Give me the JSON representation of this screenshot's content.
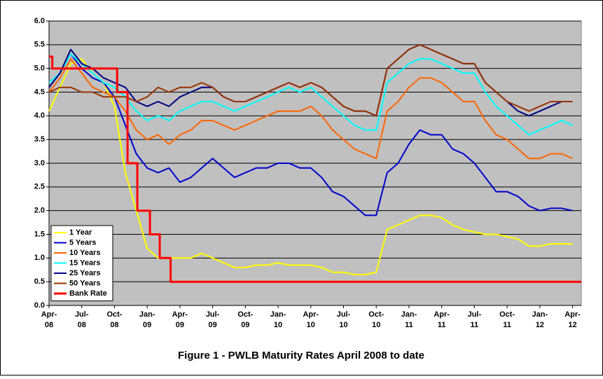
{
  "chart_data": {
    "type": "line",
    "title": "Figure 1 - PWLB Maturity Rates April 2008 to date",
    "x": [
      0,
      1,
      2,
      3,
      4,
      5,
      6,
      7,
      8,
      9,
      10,
      11,
      12,
      13,
      14,
      15,
      16,
      17,
      18,
      19,
      20,
      21,
      22,
      23,
      24,
      25,
      26,
      27,
      28,
      29,
      30,
      31,
      32,
      33,
      34,
      35,
      36,
      37,
      38,
      39,
      40,
      41,
      42,
      43,
      44,
      45,
      46,
      47,
      48
    ],
    "xlim": [
      0,
      48.8
    ],
    "xticks": [
      {
        "value": 0,
        "label": "Apr-08"
      },
      {
        "value": 3,
        "label": "Jul-08"
      },
      {
        "value": 6,
        "label": "Oct-08"
      },
      {
        "value": 9,
        "label": "Jan-09"
      },
      {
        "value": 12,
        "label": "Apr-09"
      },
      {
        "value": 15,
        "label": "Jul-09"
      },
      {
        "value": 18,
        "label": "Oct-09"
      },
      {
        "value": 21,
        "label": "Jan-10"
      },
      {
        "value": 24,
        "label": "Apr-10"
      },
      {
        "value": 27,
        "label": "Jul-10"
      },
      {
        "value": 30,
        "label": "Oct-10"
      },
      {
        "value": 33,
        "label": "Jan-11"
      },
      {
        "value": 36,
        "label": "Apr-11"
      },
      {
        "value": 39,
        "label": "Jul-11"
      },
      {
        "value": 42,
        "label": "Oct-11"
      },
      {
        "value": 45,
        "label": "Jan-12"
      },
      {
        "value": 48,
        "label": "Apr-12"
      }
    ],
    "ylim": [
      0,
      6
    ],
    "yticks": [
      {
        "value": 0,
        "label": "0.0"
      },
      {
        "value": 0.5,
        "label": "0.5"
      },
      {
        "value": 1,
        "label": "1.0"
      },
      {
        "value": 1.5,
        "label": "1.5"
      },
      {
        "value": 2,
        "label": "2.0"
      },
      {
        "value": 2.5,
        "label": "2.5"
      },
      {
        "value": 3,
        "label": "3.0"
      },
      {
        "value": 3.5,
        "label": "3.5"
      },
      {
        "value": 4,
        "label": "4.0"
      },
      {
        "value": 4.5,
        "label": "4.5"
      },
      {
        "value": 5,
        "label": "5.0"
      },
      {
        "value": 5.5,
        "label": "5.5"
      },
      {
        "value": 6,
        "label": "6.0"
      }
    ],
    "grid": true,
    "legend": "lower-left",
    "series": [
      {
        "name": "1 Year",
        "color": "#ffff00",
        "values": [
          4.1,
          4.6,
          5.1,
          5.2,
          4.9,
          4.7,
          4.2,
          2.8,
          2.0,
          1.2,
          1.0,
          1.0,
          1.0,
          1.0,
          1.1,
          1.0,
          0.9,
          0.8,
          0.8,
          0.85,
          0.85,
          0.9,
          0.85,
          0.85,
          0.85,
          0.8,
          0.7,
          0.7,
          0.65,
          0.65,
          0.7,
          1.6,
          1.7,
          1.8,
          1.9,
          1.9,
          1.85,
          1.7,
          1.6,
          1.55,
          1.5,
          1.5,
          1.45,
          1.4,
          1.25,
          1.25,
          1.3,
          1.3,
          1.3
        ]
      },
      {
        "name": "5 Years",
        "color": "#0000cc",
        "values": [
          4.6,
          4.9,
          5.3,
          5.0,
          4.8,
          4.7,
          4.4,
          3.8,
          3.2,
          2.9,
          2.8,
          2.9,
          2.6,
          2.7,
          2.9,
          3.1,
          2.9,
          2.7,
          2.8,
          2.9,
          2.9,
          3.0,
          3.0,
          2.9,
          2.9,
          2.7,
          2.4,
          2.3,
          2.1,
          1.9,
          1.9,
          2.8,
          3.0,
          3.4,
          3.7,
          3.6,
          3.6,
          3.3,
          3.2,
          3.0,
          2.7,
          2.4,
          2.4,
          2.3,
          2.1,
          2.0,
          2.05,
          2.05,
          2.0
        ]
      },
      {
        "name": "10 Years",
        "color": "#ff6600",
        "values": [
          4.5,
          4.8,
          5.2,
          4.9,
          4.6,
          4.5,
          4.4,
          4.1,
          3.7,
          3.5,
          3.6,
          3.4,
          3.6,
          3.7,
          3.9,
          3.9,
          3.8,
          3.7,
          3.8,
          3.9,
          4.0,
          4.1,
          4.1,
          4.1,
          4.2,
          4.0,
          3.7,
          3.5,
          3.3,
          3.2,
          3.1,
          4.1,
          4.3,
          4.6,
          4.8,
          4.8,
          4.7,
          4.5,
          4.3,
          4.3,
          3.9,
          3.6,
          3.5,
          3.3,
          3.1,
          3.1,
          3.2,
          3.2,
          3.1
        ]
      },
      {
        "name": "15 Years",
        "color": "#00ffff",
        "values": [
          4.7,
          4.9,
          5.3,
          5.1,
          4.9,
          4.7,
          4.6,
          4.4,
          4.1,
          3.9,
          4.0,
          3.9,
          4.1,
          4.2,
          4.3,
          4.3,
          4.2,
          4.1,
          4.2,
          4.3,
          4.4,
          4.5,
          4.6,
          4.5,
          4.6,
          4.4,
          4.2,
          4.0,
          3.8,
          3.7,
          3.7,
          4.7,
          4.9,
          5.1,
          5.2,
          5.2,
          5.1,
          5.0,
          4.9,
          4.9,
          4.5,
          4.2,
          4.0,
          3.8,
          3.6,
          3.7,
          3.8,
          3.9,
          3.8
        ]
      },
      {
        "name": "25 Years",
        "color": "#000080",
        "values": [
          4.6,
          4.9,
          5.4,
          5.1,
          5.0,
          4.8,
          4.7,
          4.6,
          4.3,
          4.2,
          4.3,
          4.2,
          4.4,
          4.5,
          4.6,
          4.6,
          4.4,
          4.3,
          4.3,
          4.4,
          4.5,
          4.6,
          4.7,
          4.6,
          4.7,
          4.6,
          4.4,
          4.2,
          4.1,
          4.1,
          4.0,
          5.0,
          5.2,
          5.4,
          5.5,
          5.4,
          5.3,
          5.2,
          5.1,
          5.1,
          4.7,
          4.5,
          4.3,
          4.1,
          4.0,
          4.1,
          4.2,
          4.3,
          4.3
        ]
      },
      {
        "name": "50 Years",
        "color": "#993300",
        "values": [
          4.5,
          4.6,
          4.6,
          4.5,
          4.5,
          4.4,
          4.4,
          4.4,
          4.3,
          4.4,
          4.6,
          4.5,
          4.6,
          4.6,
          4.7,
          4.6,
          4.4,
          4.3,
          4.3,
          4.4,
          4.5,
          4.6,
          4.7,
          4.6,
          4.7,
          4.6,
          4.4,
          4.2,
          4.1,
          4.1,
          4.0,
          5.0,
          5.2,
          5.4,
          5.5,
          5.4,
          5.3,
          5.2,
          5.1,
          5.1,
          4.7,
          4.5,
          4.3,
          4.2,
          4.1,
          4.2,
          4.3,
          4.3,
          4.3
        ]
      },
      {
        "name": "Bank Rate",
        "color": "#ff0000",
        "width": 3,
        "x": [
          0,
          0.3,
          0.3,
          6.25,
          6.25,
          7.2,
          7.2,
          8.1,
          8.1,
          9.25,
          9.25,
          10.15,
          10.15,
          11.15,
          11.15,
          48.8
        ],
        "values": [
          5.25,
          5.25,
          5.0,
          5.0,
          4.5,
          4.5,
          3.0,
          3.0,
          2.0,
          2.0,
          1.5,
          1.5,
          1.0,
          1.0,
          0.5,
          0.5
        ]
      }
    ]
  }
}
